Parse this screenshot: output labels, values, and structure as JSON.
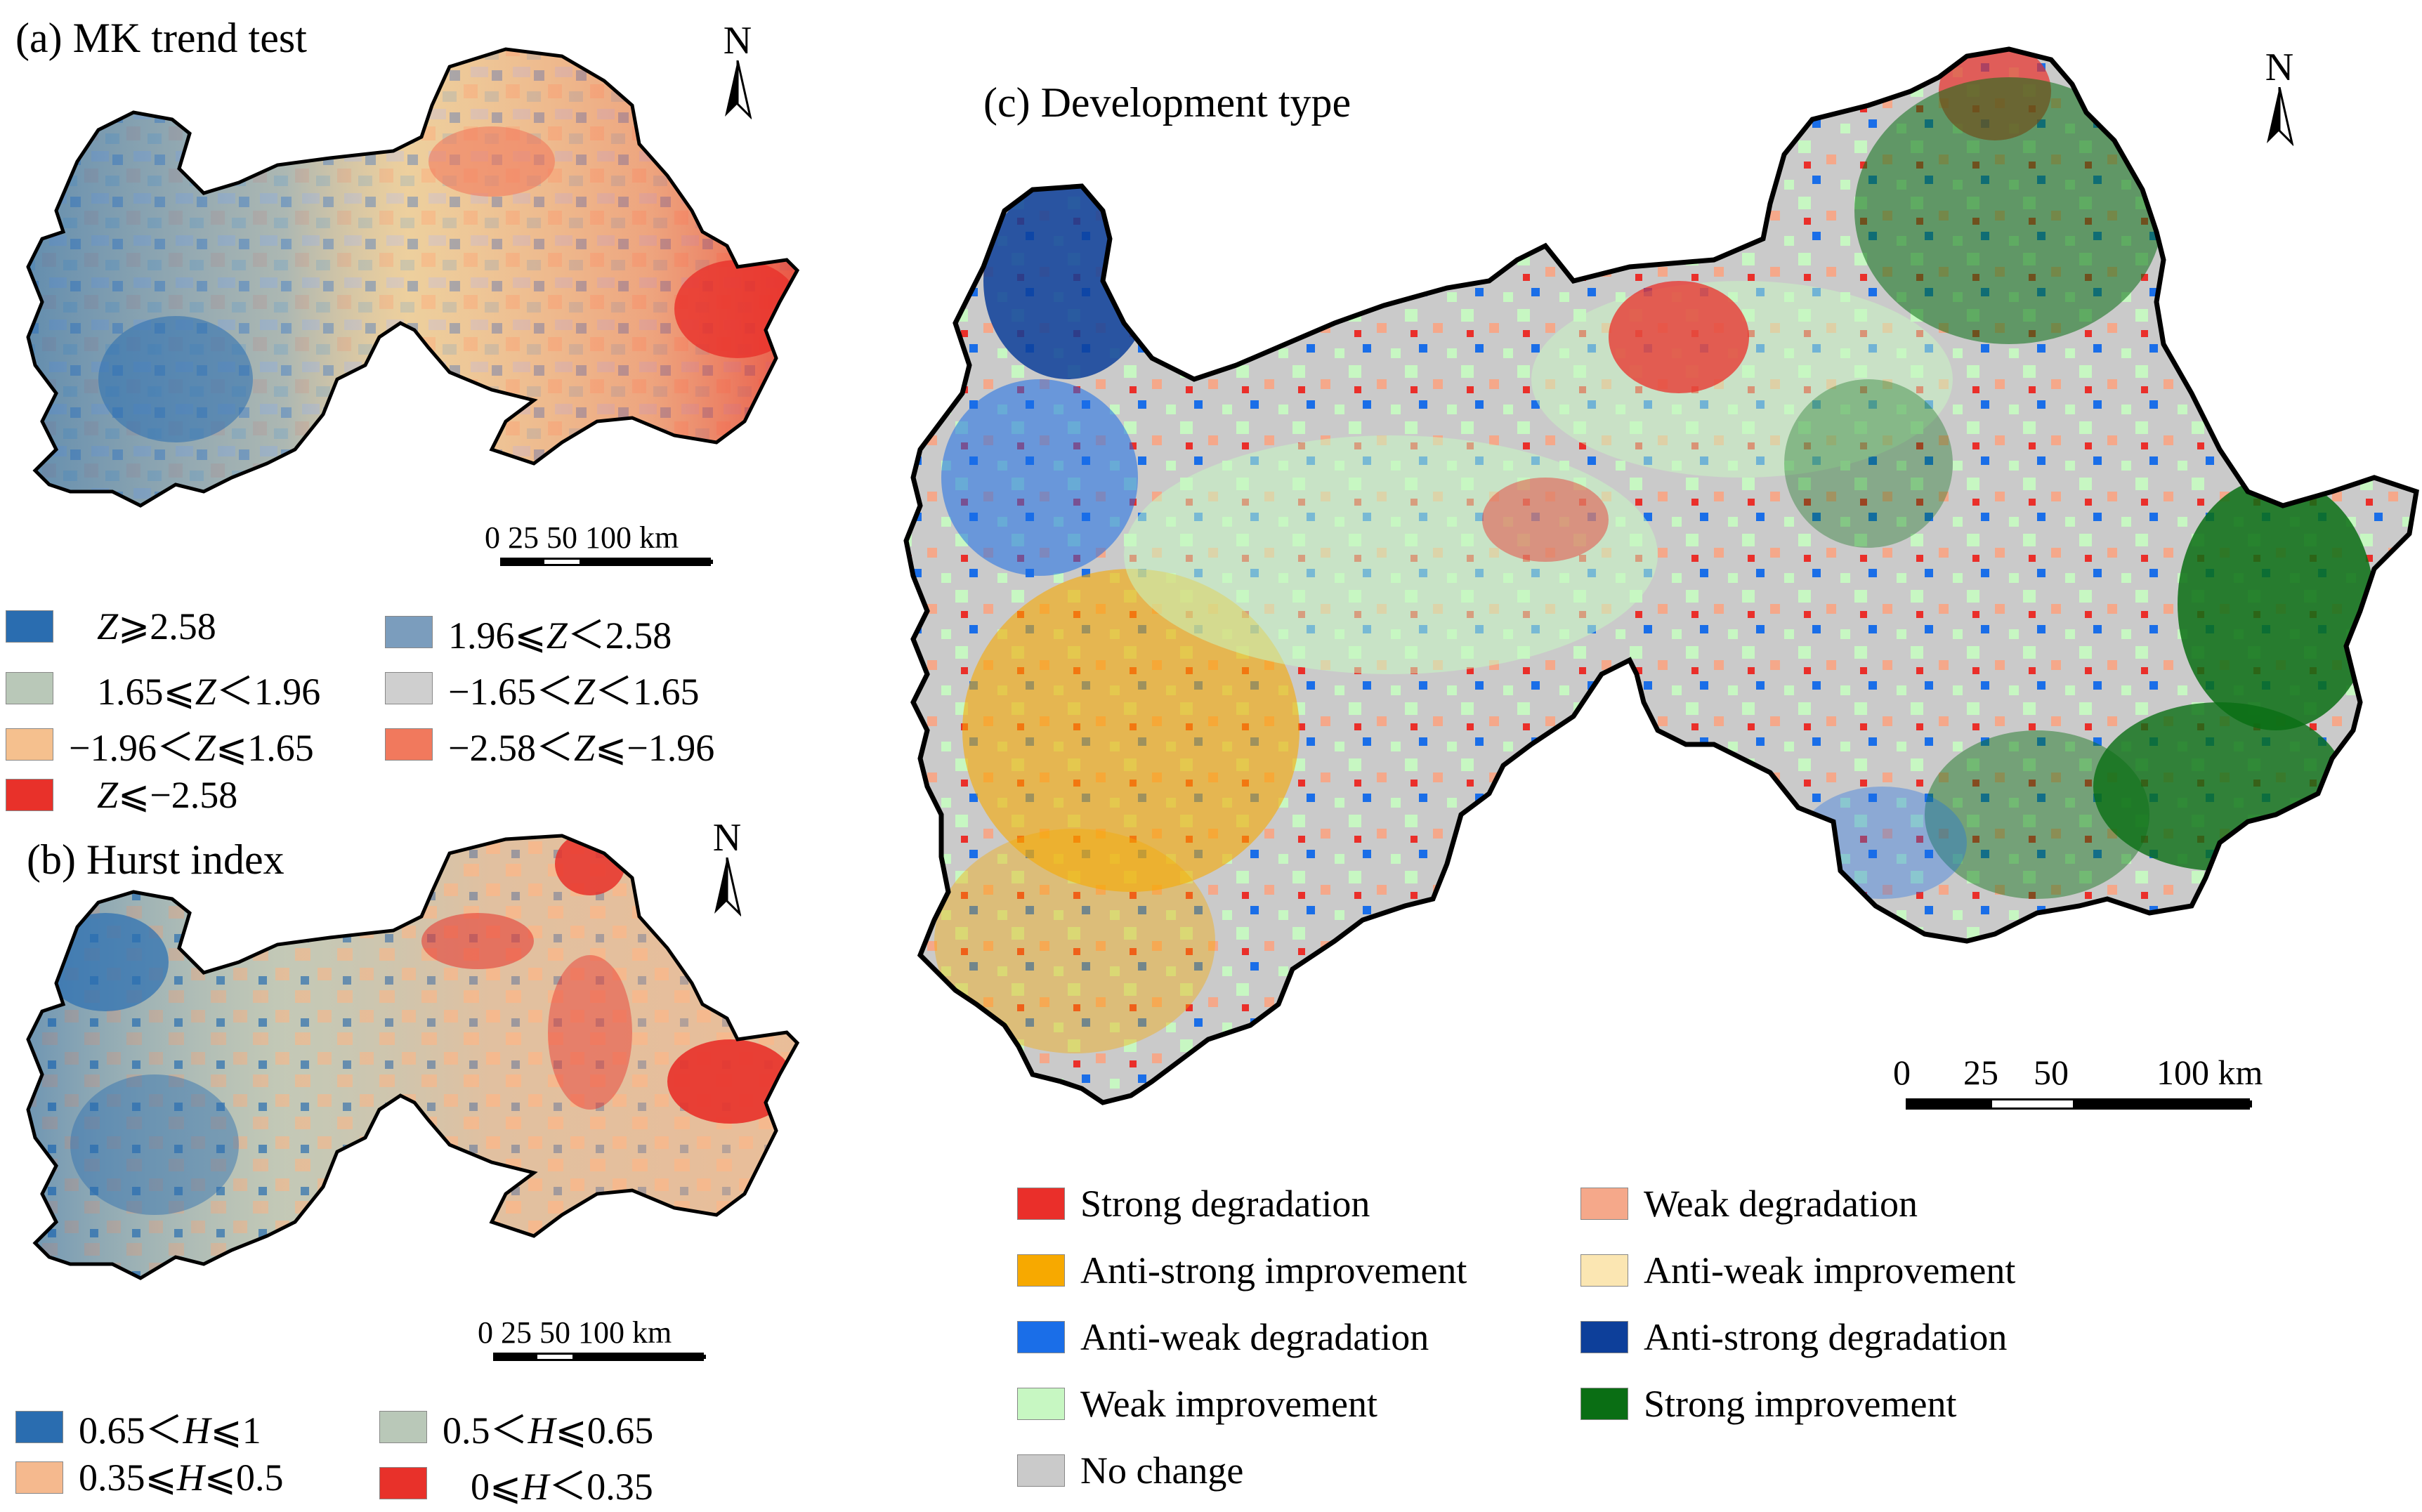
{
  "panel_a": {
    "title": "(a) MK trend test",
    "north": "N",
    "scale_labels": "0 25 50 100 km",
    "legend": [
      {
        "label": "Z⩾2.58",
        "color": "#2a6db0"
      },
      {
        "label": "1.96⩽Z＜2.58",
        "color": "#7b9dbd"
      },
      {
        "label": "1.65⩽Z＜1.96",
        "color": "#b9c8b8"
      },
      {
        "label": "−1.65＜Z＜1.65",
        "color": "#cfcfcf"
      },
      {
        "label": "−1.96＜Z⩽1.65",
        "color": "#f5c08e"
      },
      {
        "label": "−2.58＜Z⩽−1.96",
        "color": "#f1795d"
      },
      {
        "label": "Z⩽−2.58",
        "color": "#e8312a"
      }
    ]
  },
  "panel_b": {
    "title": "(b) Hurst index",
    "north": "N",
    "scale_labels": "0 25 50 100 km",
    "legend": [
      {
        "label": "0.65＜H⩽1",
        "color": "#2a6db0"
      },
      {
        "label": "0.5＜H⩽0.65",
        "color": "#b9c8b8"
      },
      {
        "label": "0.35⩽H⩽0.5",
        "color": "#f5b98e"
      },
      {
        "label": "0⩽H＜0.35",
        "color": "#e8312a"
      }
    ]
  },
  "panel_c": {
    "title": "(c) Development type",
    "north": "N",
    "scale_labels": "0      25    50          100 km",
    "legend": [
      {
        "label": "Strong degradation",
        "color": "#ea2f2a"
      },
      {
        "label": "Weak degradation",
        "color": "#f5a88a"
      },
      {
        "label": "Anti-strong improvement",
        "color": "#f7a900"
      },
      {
        "label": "Anti-weak improvement",
        "color": "#fbe6b2"
      },
      {
        "label": "Anti-weak degradation",
        "color": "#1a6ee8"
      },
      {
        "label": "Anti-strong degradation",
        "color": "#0d3f9a"
      },
      {
        "label": "Weak improvement",
        "color": "#c7f7c2"
      },
      {
        "label": "Strong improvement",
        "color": "#0a6e14"
      },
      {
        "label": "No change",
        "color": "#cacaca"
      }
    ]
  }
}
